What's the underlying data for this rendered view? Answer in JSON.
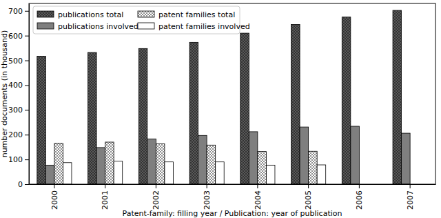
{
  "chart_data": {
    "type": "bar",
    "x_label": "Patent-family: filling year / Publication: year of publication",
    "y_label": "number documents (in thousand)",
    "categories": [
      "2000",
      "2001",
      "2002",
      "2003",
      "2004",
      "2005",
      "2006",
      "2007"
    ],
    "series": [
      {
        "name": "publications total",
        "color": "#5a5a5a",
        "values": [
          517,
          532,
          548,
          573,
          610,
          645,
          675,
          702
        ]
      },
      {
        "name": "publications involved",
        "color": "#7f7f7f",
        "values": [
          77,
          148,
          183,
          197,
          212,
          231,
          234,
          206
        ]
      },
      {
        "name": "patent families total",
        "color": "#ffffff",
        "values": [
          165,
          170,
          163,
          158,
          132,
          133,
          null,
          null
        ]
      },
      {
        "name": "patent families involved",
        "color": "#ffffff",
        "values": [
          87,
          93,
          90,
          90,
          77,
          78,
          null,
          null
        ]
      }
    ],
    "ylim": [
      0,
      730
    ],
    "yticks": [
      0,
      100,
      200,
      300,
      400,
      500,
      600,
      700
    ],
    "legend": "upper left"
  }
}
